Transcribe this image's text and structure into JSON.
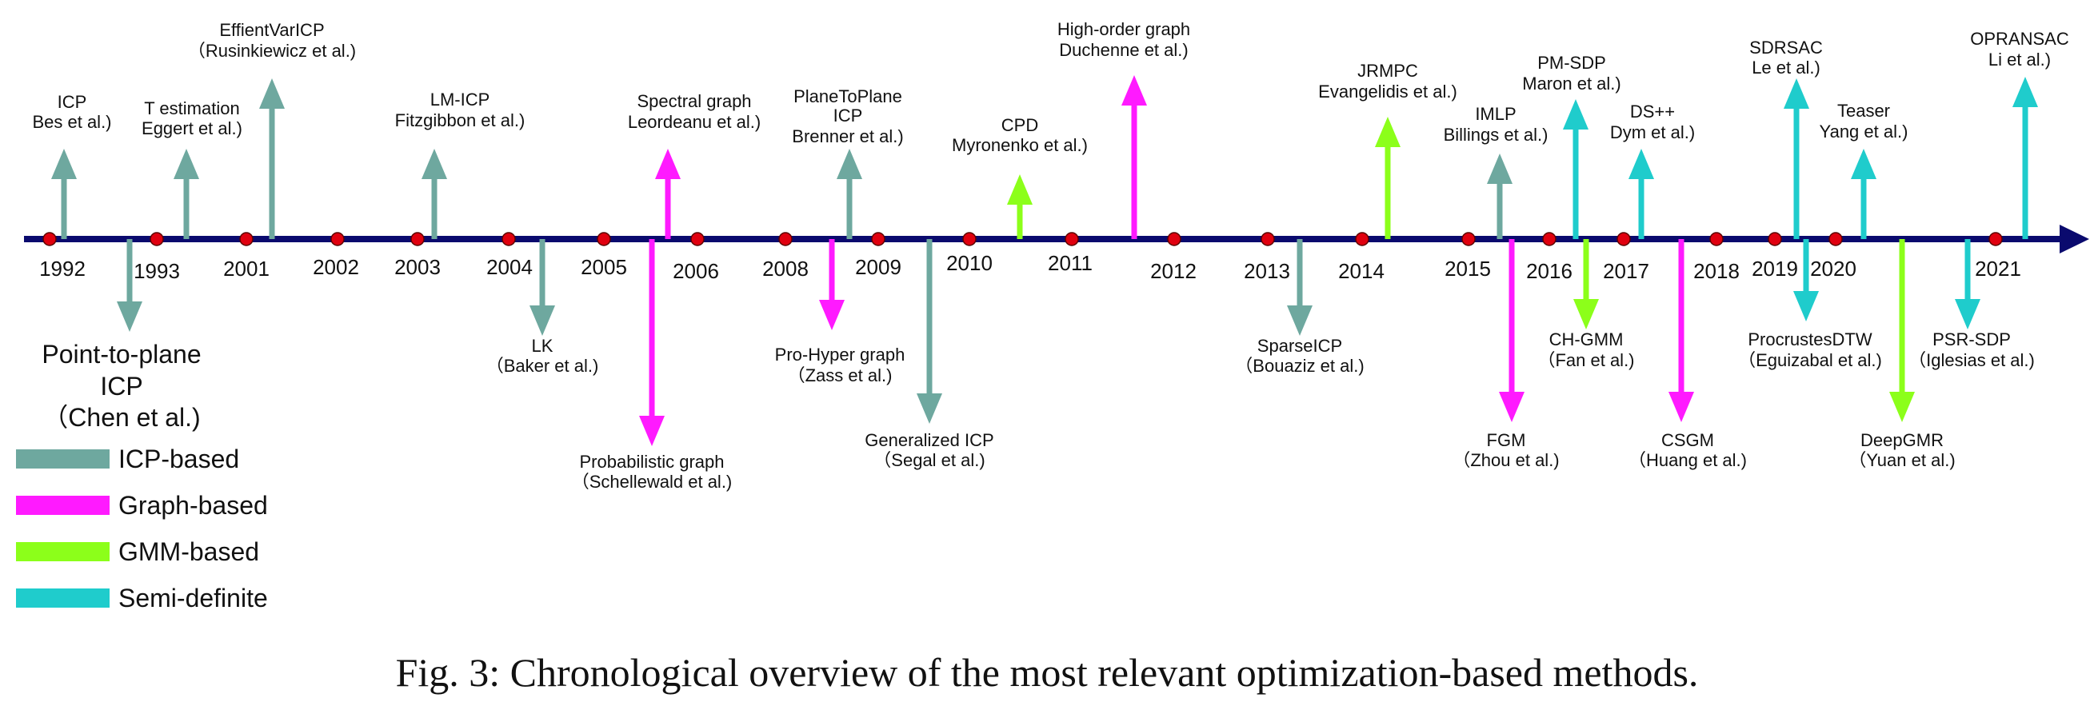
{
  "colors": {
    "icp": "#6ea89f",
    "graph": "#ff1aff",
    "gmm": "#8cff1a",
    "sdp": "#1fcccc",
    "axis": "#0a0a6e",
    "dot": "#e0000f"
  },
  "years": [
    "1992",
    "1993",
    "2001",
    "2002",
    "2003",
    "2004",
    "2005",
    "2006",
    "2008",
    "2009",
    "2010",
    "2011",
    "2012",
    "2013",
    "2014",
    "2015",
    "2016",
    "2017",
    "2018",
    "2019",
    "2020",
    "2021"
  ],
  "methods": [
    {
      "id": "icp",
      "cat": "icp",
      "dir": "up",
      "lines": [
        "ICP",
        "Bes et al.)"
      ]
    },
    {
      "id": "t-estimation",
      "cat": "icp",
      "dir": "up",
      "lines": [
        "T estimation",
        "Eggert et al.)"
      ]
    },
    {
      "id": "effientvaricp",
      "cat": "icp",
      "dir": "up",
      "lines": [
        "EffientVarICP",
        "（Rusinkiewicz et al.)"
      ]
    },
    {
      "id": "lm-icp",
      "cat": "icp",
      "dir": "up",
      "lines": [
        "LM-ICP",
        "Fitzgibbon et al.)"
      ]
    },
    {
      "id": "spectral-graph",
      "cat": "graph",
      "dir": "up",
      "lines": [
        "Spectral graph",
        "Leordeanu et al.)"
      ]
    },
    {
      "id": "planetoplane-icp",
      "cat": "icp",
      "dir": "up",
      "lines": [
        "PlaneToPlane",
        "ICP",
        "Brenner et al.)"
      ]
    },
    {
      "id": "cpd",
      "cat": "gmm",
      "dir": "up",
      "lines": [
        "CPD",
        "Myronenko et al.)"
      ]
    },
    {
      "id": "high-order-graph",
      "cat": "graph",
      "dir": "up",
      "lines": [
        "High-order graph",
        "Duchenne et al.)"
      ]
    },
    {
      "id": "jrmpc",
      "cat": "gmm",
      "dir": "up",
      "lines": [
        "JRMPC",
        "Evangelidis et al.)"
      ]
    },
    {
      "id": "imlp",
      "cat": "icp",
      "dir": "up",
      "lines": [
        "IMLP",
        "Billings et al.)"
      ]
    },
    {
      "id": "pm-sdp",
      "cat": "sdp",
      "dir": "up",
      "lines": [
        "PM-SDP",
        "Maron et al.)"
      ]
    },
    {
      "id": "ds-plus-plus",
      "cat": "sdp",
      "dir": "up",
      "lines": [
        "DS++",
        "Dym et al.)"
      ]
    },
    {
      "id": "sdrsac",
      "cat": "sdp",
      "dir": "up",
      "lines": [
        "SDRSAC",
        "Le et al.)"
      ]
    },
    {
      "id": "teaser",
      "cat": "sdp",
      "dir": "up",
      "lines": [
        "Teaser",
        "Yang et al.)"
      ]
    },
    {
      "id": "opransac",
      "cat": "sdp",
      "dir": "up",
      "lines": [
        "OPRANSAC",
        "Li et al.)"
      ]
    },
    {
      "id": "point-to-plane-icp",
      "cat": "icp",
      "dir": "down",
      "lines": [
        "Point-to-plane",
        "ICP",
        "（Chen et al.)"
      ]
    },
    {
      "id": "lk",
      "cat": "icp",
      "dir": "down",
      "lines": [
        "LK",
        "（Baker et al.)"
      ]
    },
    {
      "id": "probabilistic-graph",
      "cat": "graph",
      "dir": "down",
      "lines": [
        "Probabilistic graph",
        "（Schellewald et al.)"
      ]
    },
    {
      "id": "pro-hyper-graph",
      "cat": "graph",
      "dir": "down",
      "lines": [
        "Pro-Hyper graph",
        "（Zass et al.)"
      ]
    },
    {
      "id": "generalized-icp",
      "cat": "icp",
      "dir": "down",
      "lines": [
        "Generalized ICP",
        "（Segal et al.)"
      ]
    },
    {
      "id": "sparseicp",
      "cat": "icp",
      "dir": "down",
      "lines": [
        "SparseICP",
        "（Bouaziz et al.)"
      ]
    },
    {
      "id": "fgm",
      "cat": "graph",
      "dir": "down",
      "lines": [
        "FGM",
        "（Zhou et al.)"
      ]
    },
    {
      "id": "ch-gmm",
      "cat": "gmm",
      "dir": "down",
      "lines": [
        "CH-GMM",
        "（Fan et al.)"
      ]
    },
    {
      "id": "csgm",
      "cat": "graph",
      "dir": "down",
      "lines": [
        "CSGM",
        "（Huang et al.)"
      ]
    },
    {
      "id": "procrustesdtw",
      "cat": "sdp",
      "dir": "down",
      "lines": [
        "ProcrustesDTW",
        "（Eguizabal et al.)"
      ]
    },
    {
      "id": "deepgmr",
      "cat": "gmm",
      "dir": "down",
      "lines": [
        "DeepGMR",
        "（Yuan et al.)"
      ]
    },
    {
      "id": "psr-sdp",
      "cat": "sdp",
      "dir": "down",
      "lines": [
        "PSR-SDP",
        "（Iglesias et al.)"
      ]
    }
  ],
  "legend": [
    {
      "cat": "icp",
      "label": "ICP-based"
    },
    {
      "cat": "graph",
      "label": "Graph-based"
    },
    {
      "cat": "gmm",
      "label": "GMM-based"
    },
    {
      "cat": "sdp",
      "label": "Semi-definite"
    }
  ],
  "caption": "Fig. 3: Chronological overview of the most relevant optimization-based methods."
}
